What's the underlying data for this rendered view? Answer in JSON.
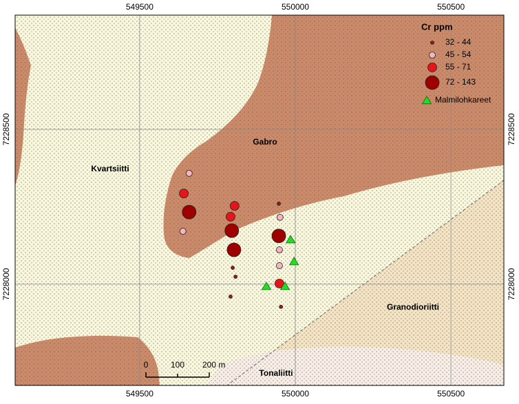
{
  "map": {
    "xlim": [
      549100,
      550670
    ],
    "ylim": [
      7227673,
      7228869
    ],
    "xticks": [
      549500,
      550000,
      550500
    ],
    "yticks": [
      7228000,
      7228500
    ],
    "units": {
      "gabro": "Gabro",
      "kvartsiitti": "Kvartsiitti",
      "granodioriitti": "Granodioriitti",
      "tonaliitti": "Tonaliitti"
    },
    "legend": {
      "title": "Cr ppm",
      "classes": [
        {
          "label": "32 - 44",
          "color": "#a31515"
        },
        {
          "label": "45 - 54",
          "color": "#f5b5be"
        },
        {
          "label": "55 - 71",
          "color": "#e8141c"
        },
        {
          "label": "72 - 143",
          "color": "#9e0000"
        }
      ],
      "boulders": {
        "label": "Malmilohkareet",
        "color": "#22dd22"
      }
    },
    "samples": [
      {
        "e": 549659,
        "n": 7228358,
        "class": 1
      },
      {
        "e": 549642,
        "n": 7228293,
        "class": 2
      },
      {
        "e": 549659,
        "n": 7228233,
        "class": 3
      },
      {
        "e": 549639,
        "n": 7228171,
        "class": 1
      },
      {
        "e": 549805,
        "n": 7228253,
        "class": 2
      },
      {
        "e": 549792,
        "n": 7228218,
        "class": 2
      },
      {
        "e": 549796,
        "n": 7228173,
        "class": 3
      },
      {
        "e": 549803,
        "n": 7228111,
        "class": 3
      },
      {
        "e": 549799,
        "n": 7228053,
        "class": 0
      },
      {
        "e": 549808,
        "n": 7228024,
        "class": 0
      },
      {
        "e": 549792,
        "n": 7227960,
        "class": 0
      },
      {
        "e": 549947,
        "n": 7228260,
        "class": 0
      },
      {
        "e": 549951,
        "n": 7228216,
        "class": 1
      },
      {
        "e": 549947,
        "n": 7228156,
        "class": 3
      },
      {
        "e": 549949,
        "n": 7228111,
        "class": 1
      },
      {
        "e": 549949,
        "n": 7228060,
        "class": 1
      },
      {
        "e": 549949,
        "n": 7228002,
        "class": 2
      },
      {
        "e": 549954,
        "n": 7227927,
        "class": 0
      }
    ],
    "boulders": [
      {
        "e": 549985,
        "n": 7228144
      },
      {
        "e": 549996,
        "n": 7228073
      },
      {
        "e": 549907,
        "n": 7227993
      },
      {
        "e": 549967,
        "n": 7227993
      }
    ],
    "scale_bar": [
      "0",
      "100",
      "200 m"
    ]
  }
}
